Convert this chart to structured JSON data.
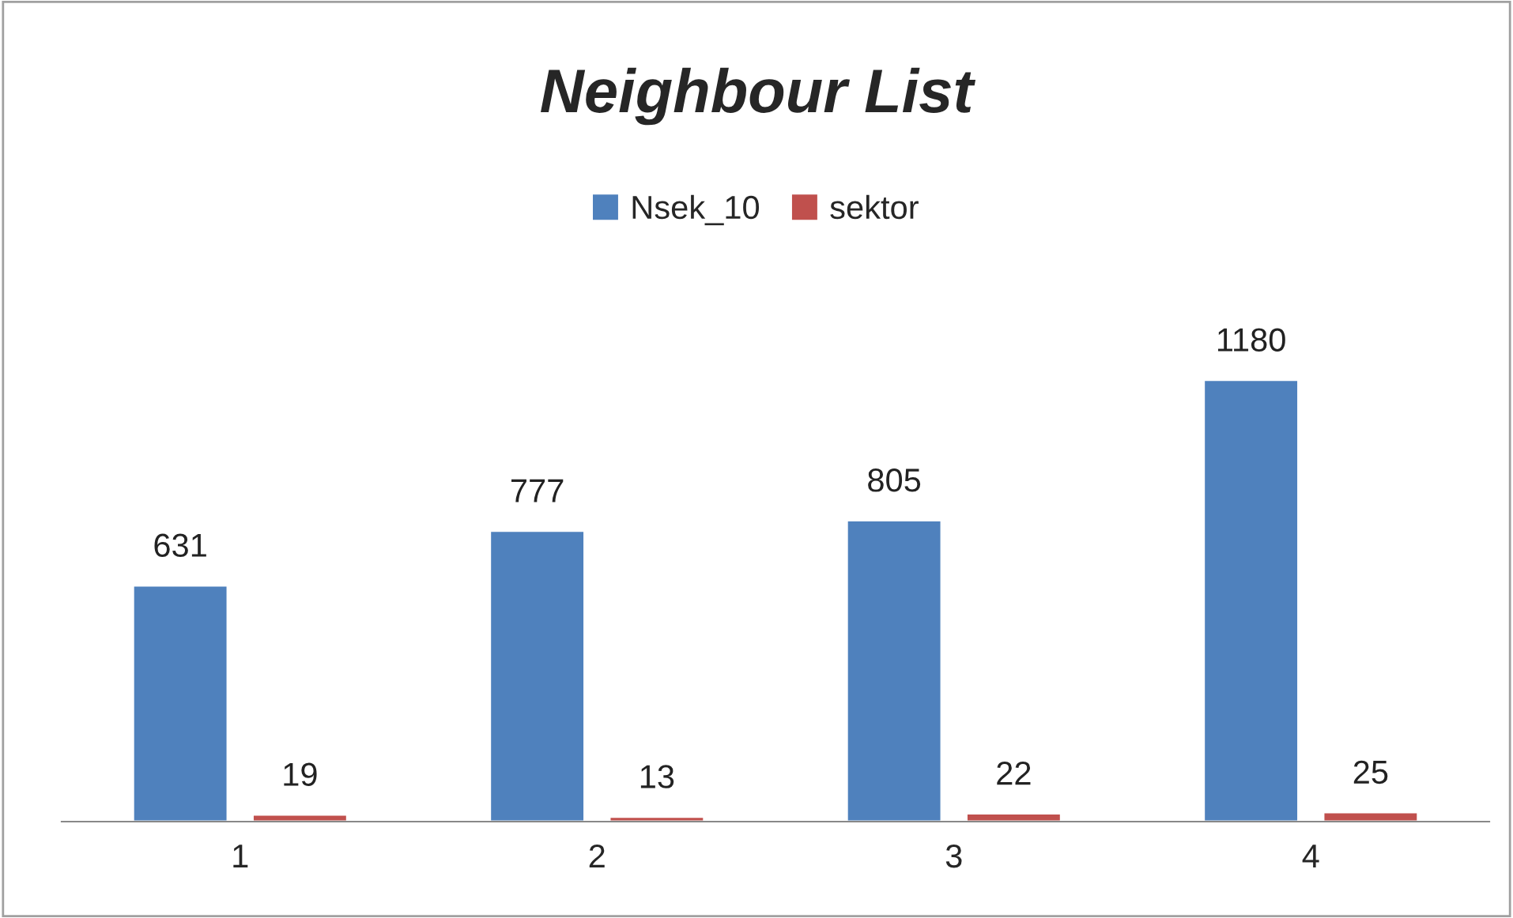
{
  "chart_data": {
    "type": "bar",
    "title": "Neighbour List",
    "categories": [
      "1",
      "2",
      "3",
      "4"
    ],
    "series": [
      {
        "name": "Nsek_10",
        "color": "#4f81bd",
        "values": [
          631,
          777,
          805,
          1180
        ]
      },
      {
        "name": "sektor",
        "color": "#c0504d",
        "values": [
          19,
          13,
          22,
          25
        ]
      }
    ],
    "data_labels": true,
    "legend": "top",
    "grid": false,
    "tick_labels": "x"
  }
}
